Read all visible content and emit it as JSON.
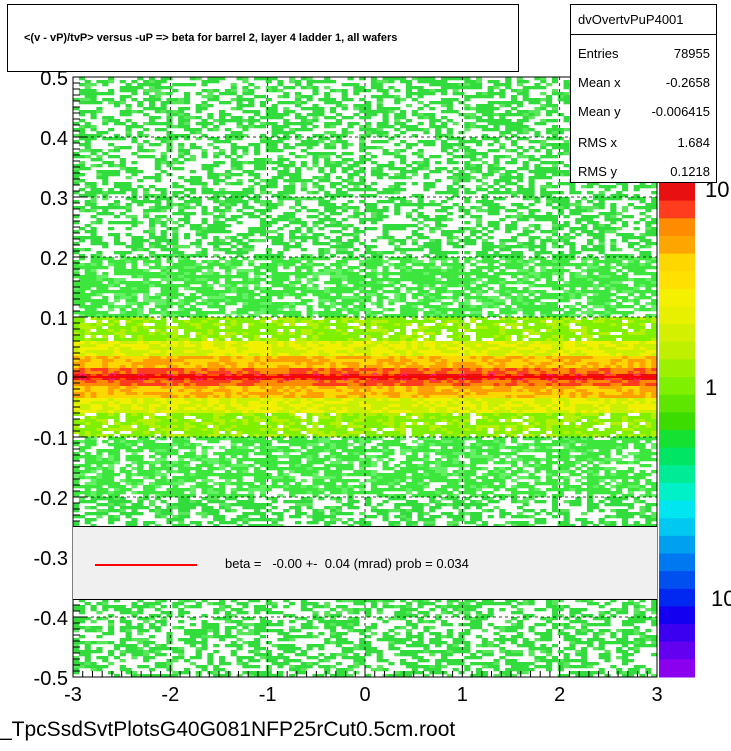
{
  "chart_data": {
    "type": "heatmap",
    "title": "<(v - vP)/tvP> versus  -uP => beta for barrel 2, layer 4 ladder 1, all wafers",
    "xlim": [
      -3,
      3
    ],
    "ylim": [
      -0.5,
      0.5
    ],
    "x_ticks": [
      "-3",
      "-2",
      "-1",
      "0",
      "1",
      "2",
      "3"
    ],
    "y_ticks": [
      "-0.5",
      "-0.4",
      "-0.3",
      "-0.2",
      "-0.1",
      "0",
      "0.1",
      "0.2",
      "0.3",
      "0.4",
      "0.5"
    ],
    "grid": true,
    "palette_labels": [
      "10",
      "1",
      "10"
    ],
    "profile_points": {
      "x": [
        -2.9,
        -2.6,
        -2.3,
        -2.0,
        -1.7,
        -1.4,
        -1.1,
        -0.8,
        -0.5,
        -0.2,
        0.1,
        0.4,
        0.7,
        1.0,
        1.3,
        1.6,
        1.9,
        2.2,
        2.5,
        2.8
      ],
      "y": [
        0.0,
        0.001,
        0.0,
        -0.001,
        0.0,
        0.001,
        0.0,
        -0.001,
        0.0,
        0.0,
        0.001,
        0.0,
        -0.001,
        0.0,
        0.001,
        0.0,
        -0.001,
        0.0,
        0.001,
        0.0
      ]
    },
    "fit_line": {
      "x": [
        -3,
        3
      ],
      "y": [
        0.0,
        0.0
      ],
      "color": "#ff0000"
    }
  },
  "stats": {
    "name": "dvOvertvPuP4001",
    "rows": [
      {
        "key": "Entries",
        "value": "78955"
      },
      {
        "key": "Mean x",
        "value": "-0.2658"
      },
      {
        "key": "Mean y",
        "value": "-0.006415"
      },
      {
        "key": "RMS x",
        "value": "1.684"
      },
      {
        "key": "RMS y",
        "value": "0.1218"
      }
    ]
  },
  "fit_legend": {
    "text": "beta =   -0.00 +-  0.04 (mrad) prob = 0.034",
    "color": "#ff0000"
  },
  "footer": {
    "filename": "_TpcSsdSvtPlotsG40G081NFP25rCut0.5cm.root"
  }
}
